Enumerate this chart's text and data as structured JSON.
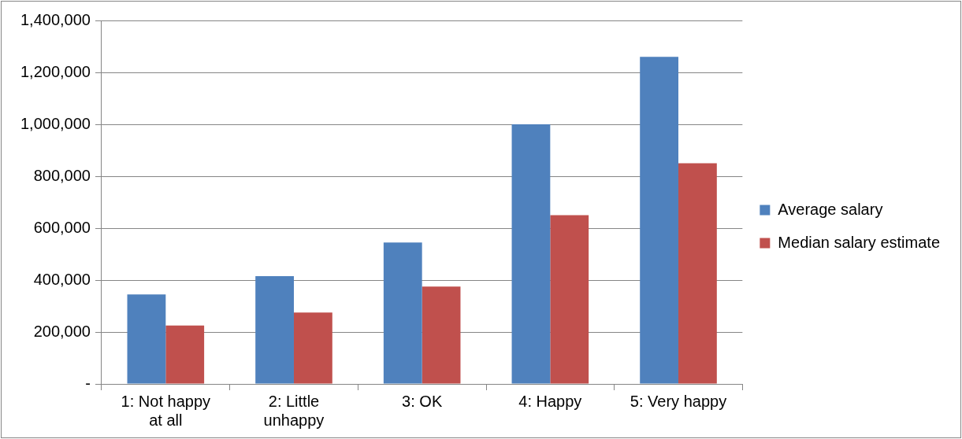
{
  "chart_data": {
    "type": "bar",
    "categories": [
      "1: Not happy at all",
      "2: Little unhappy",
      "3: OK",
      "4: Happy",
      "5: Very happy"
    ],
    "series": [
      {
        "name": "Average salary",
        "color": "#4f81bd",
        "values": [
          345000,
          415000,
          545000,
          1000000,
          1260000
        ]
      },
      {
        "name": "Median salary estimate",
        "color": "#c0504d",
        "values": [
          225000,
          275000,
          375000,
          650000,
          850000
        ]
      }
    ],
    "ylim": [
      0,
      1400000
    ],
    "yticks": [
      {
        "value": 0,
        "label": "-"
      },
      {
        "value": 200000,
        "label": "200,000"
      },
      {
        "value": 400000,
        "label": "400,000"
      },
      {
        "value": 600000,
        "label": "600,000"
      },
      {
        "value": 800000,
        "label": "800,000"
      },
      {
        "value": 1000000,
        "label": "1,000,000"
      },
      {
        "value": 1200000,
        "label": "1,200,000"
      },
      {
        "value": 1400000,
        "label": "1,400,000"
      }
    ],
    "grid": "y",
    "legend": "right"
  }
}
